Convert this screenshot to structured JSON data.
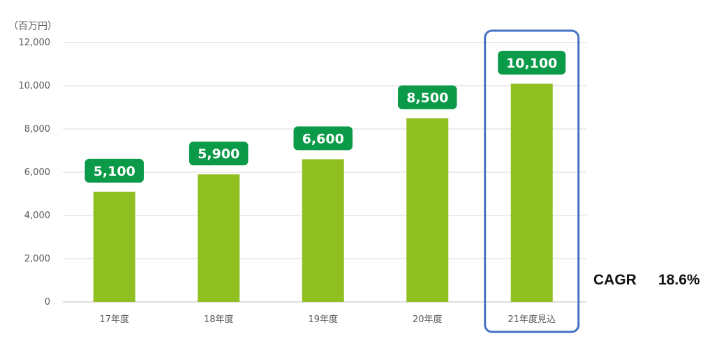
{
  "chart_data": {
    "type": "bar",
    "unit_label": "（百万円）",
    "categories": [
      "17年度",
      "18年度",
      "19年度",
      "20年度",
      "21年度見込"
    ],
    "values": [
      5100,
      5900,
      6600,
      8500,
      10100
    ],
    "data_labels": [
      "5,100",
      "5,900",
      "6,600",
      "8,500",
      "10,100"
    ],
    "ylim": [
      0,
      12000
    ],
    "y_ticks": [
      0,
      2000,
      4000,
      6000,
      8000,
      10000,
      12000
    ],
    "y_tick_labels": [
      "0",
      "2,000",
      "4,000",
      "6,000",
      "8,000",
      "10,000",
      "12,000"
    ],
    "grid": true,
    "highlighted_category": "21年度見込",
    "annotation": {
      "label": "CAGR",
      "value": "18.6%"
    },
    "colors": {
      "bar": "#8fbf21",
      "data_label_bg": "#0b9a48",
      "highlight_box": "#4472c4",
      "grid": "#d9d9d9"
    }
  }
}
